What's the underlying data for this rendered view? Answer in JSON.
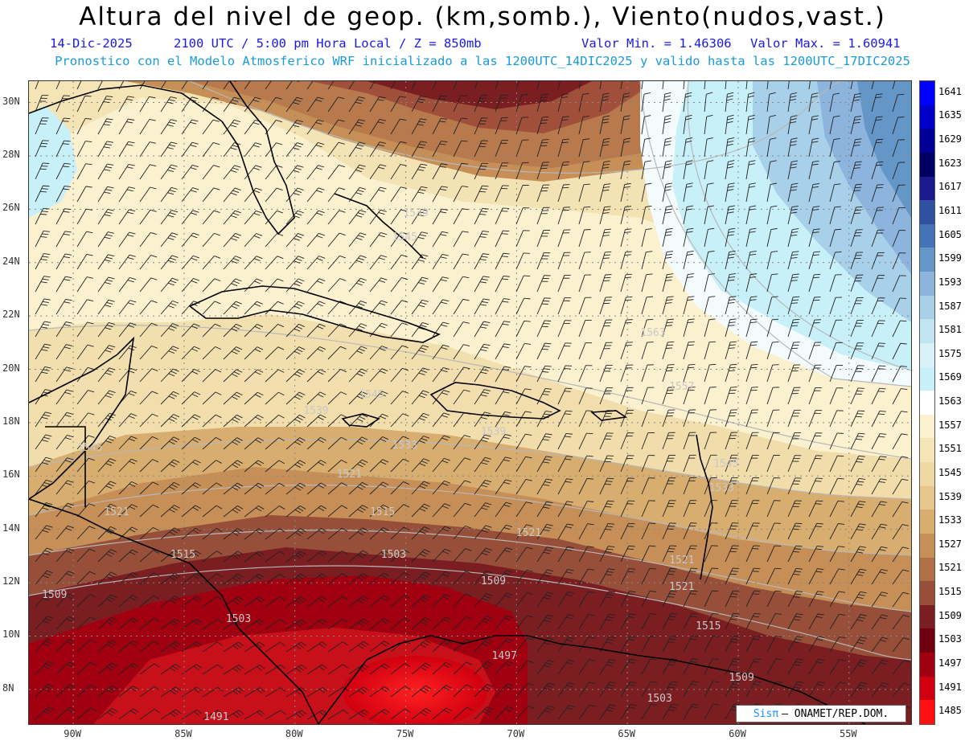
{
  "header": {
    "title": "Altura del nivel de geop. (km,somb.), Viento(nudos,vast.)",
    "date": "14-Dic-2025",
    "time": "2100 UTC / 5:00 pm Hora Local / Z = 850mb",
    "min": "Valor Min. = 1.46306",
    "max": "Valor Max. = 1.60941",
    "forecast": "Pronostico con el Modelo Atmosferico WRF inicializado a las 1200UTC_14DIC2025 y valido hasta las  1200UTC_17DIC2025"
  },
  "map": {
    "latitude_labels": [
      "30N",
      "28N",
      "26N",
      "24N",
      "22N",
      "20N",
      "18N",
      "16N",
      "14N",
      "12N",
      "10N",
      "8N"
    ],
    "longitude_labels": [
      "90W",
      "85W",
      "80W",
      "75W",
      "70W",
      "65W",
      "60W",
      "55W"
    ],
    "contour_labels": [
      {
        "text": "1539",
        "lon": -74.5,
        "lat": 25.8
      },
      {
        "text": "1545",
        "lon": -75.0,
        "lat": 24.9
      },
      {
        "text": "1563",
        "lon": -63.8,
        "lat": 21.3
      },
      {
        "text": "1557",
        "lon": -62.5,
        "lat": 19.3
      },
      {
        "text": "1545",
        "lon": -76.5,
        "lat": 19.0
      },
      {
        "text": "1539",
        "lon": -79.0,
        "lat": 18.4
      },
      {
        "text": "1545",
        "lon": -89.2,
        "lat": 17.0
      },
      {
        "text": "1539",
        "lon": -71.0,
        "lat": 17.6
      },
      {
        "text": "1533",
        "lon": -75.0,
        "lat": 17.1
      },
      {
        "text": "1545",
        "lon": -60.5,
        "lat": 16.4
      },
      {
        "text": "1533",
        "lon": -60.7,
        "lat": 15.5
      },
      {
        "text": "1521",
        "lon": -77.5,
        "lat": 16.0
      },
      {
        "text": "1521",
        "lon": -88.0,
        "lat": 14.6
      },
      {
        "text": "1515",
        "lon": -76.0,
        "lat": 14.6
      },
      {
        "text": "1521",
        "lon": -69.4,
        "lat": 13.8
      },
      {
        "text": "1521",
        "lon": -62.5,
        "lat": 12.8
      },
      {
        "text": "1521",
        "lon": -62.5,
        "lat": 11.8
      },
      {
        "text": "1515",
        "lon": -85.0,
        "lat": 13.0
      },
      {
        "text": "1503",
        "lon": -75.5,
        "lat": 13.0
      },
      {
        "text": "1509",
        "lon": -71.0,
        "lat": 12.0
      },
      {
        "text": "1509",
        "lon": -90.8,
        "lat": 11.5
      },
      {
        "text": "1503",
        "lon": -82.5,
        "lat": 10.6
      },
      {
        "text": "1515",
        "lon": -61.3,
        "lat": 10.3
      },
      {
        "text": "1497",
        "lon": -70.5,
        "lat": 9.2
      },
      {
        "text": "1509",
        "lon": -59.8,
        "lat": 8.4
      },
      {
        "text": "1503",
        "lon": -63.5,
        "lat": 7.6
      },
      {
        "text": "1491",
        "lon": -83.5,
        "lat": 6.9
      }
    ]
  },
  "colorbar": {
    "levels": [
      "1641",
      "1635",
      "1629",
      "1623",
      "1617",
      "1611",
      "1605",
      "1599",
      "1593",
      "1587",
      "1581",
      "1575",
      "1569",
      "1563",
      "1557",
      "1551",
      "1545",
      "1539",
      "1533",
      "1527",
      "1521",
      "1515",
      "1509",
      "1503",
      "1497",
      "1491",
      "1485"
    ],
    "colors": [
      "#0000ff",
      "#0000c8",
      "#000096",
      "#000064",
      "#1a1a8c",
      "#3050a0",
      "#4472b4",
      "#6496c8",
      "#8cb4dc",
      "#a8d0e8",
      "#c0e4f0",
      "#d8f2f8",
      "#c8f0f8",
      "#ffffff",
      "#fbf1cf",
      "#f4e4b6",
      "#efd8a4",
      "#e6c68a",
      "#d8ad70",
      "#c68f57",
      "#b06f45",
      "#984f3a",
      "#7a1e22",
      "#700010",
      "#a00010",
      "#d00010",
      "#ff1010"
    ]
  },
  "credit": {
    "brand": "Sisπ",
    "org": "– ONAMET/REP.DOM."
  }
}
